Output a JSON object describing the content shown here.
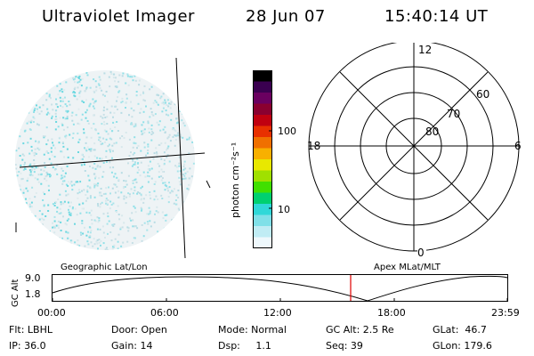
{
  "header": {
    "title": "Ultraviolet Imager",
    "date": "28 Jun 07",
    "time": "15:40:14 UT"
  },
  "colorbar": {
    "label": "photon cm⁻²s⁻¹",
    "ticks": [
      "100",
      "10"
    ],
    "scale": "log",
    "colors": [
      "#000000",
      "#3a0050",
      "#6a0060",
      "#8a0030",
      "#c00010",
      "#e83000",
      "#f07000",
      "#f8b000",
      "#e8e800",
      "#a0e000",
      "#40e000",
      "#00d070",
      "#30d8d8",
      "#80e0e8",
      "#c0ecf4",
      "#eef8fc"
    ]
  },
  "polar_plot": {
    "mlt_labels": [
      "12",
      "18",
      "6",
      "0"
    ],
    "lat_labels": [
      "80",
      "70",
      "60"
    ]
  },
  "timeline": {
    "left_title": "Geographic Lat/Lon",
    "right_title": "Apex  MLat/MLT",
    "y_label": "GC Alt",
    "y_ticks": [
      "9.0",
      "1.8"
    ],
    "x_ticks": [
      "00:00",
      "06:00",
      "12:00",
      "18:00",
      "23:59"
    ],
    "current_time_marker_color": "#e00000"
  },
  "status": {
    "row1": {
      "flt": "Flt: LBHL",
      "door": "Door: Open",
      "mode": "Mode: Normal",
      "gc_alt": "GC Alt: 2.5 Re",
      "glat": "GLat:  46.7"
    },
    "row2": {
      "ip": "IP: 36.0",
      "gain": "Gain: 14",
      "dsp": "Dsp:     1.1",
      "seq": "Seq: 39",
      "glon": "GLon: 179.6"
    }
  }
}
